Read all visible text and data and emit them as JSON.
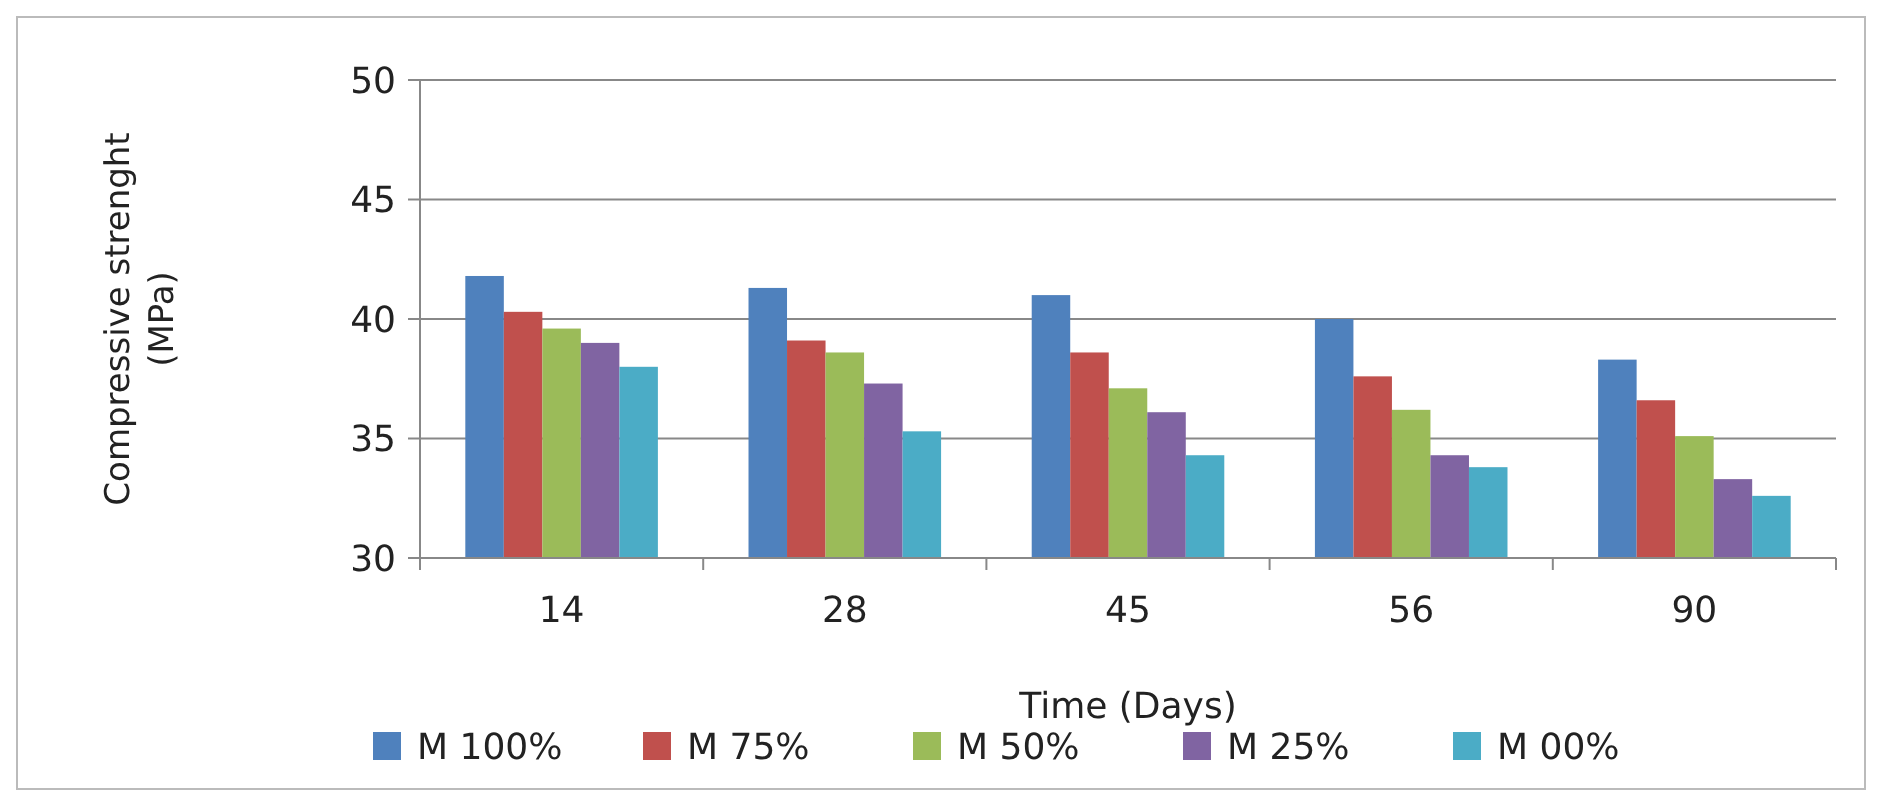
{
  "chart_data": {
    "type": "bar",
    "xlabel": "Time (Days)",
    "ylabel": "Compressive strenght (MPa)",
    "categories": [
      "14",
      "28",
      "45",
      "56",
      "90"
    ],
    "series": [
      {
        "name": "M 100%",
        "color": "#4f81bd",
        "values": [
          41.8,
          41.3,
          41.0,
          40.0,
          38.3
        ]
      },
      {
        "name": "M 75%",
        "color": "#c0504d",
        "values": [
          40.3,
          39.1,
          38.6,
          37.6,
          36.6
        ]
      },
      {
        "name": "M 50%",
        "color": "#9bbb59",
        "values": [
          39.6,
          38.6,
          37.1,
          36.2,
          35.1
        ]
      },
      {
        "name": "M 25%",
        "color": "#8064a2",
        "values": [
          39.0,
          37.3,
          36.1,
          34.3,
          33.3
        ]
      },
      {
        "name": "M 00%",
        "color": "#4bacc6",
        "values": [
          38.0,
          35.3,
          34.3,
          33.8,
          32.6
        ]
      }
    ],
    "ylim": [
      30,
      50
    ],
    "yticks": [
      30,
      35,
      40,
      45,
      50
    ],
    "grid": "y",
    "legend": "bottom"
  }
}
